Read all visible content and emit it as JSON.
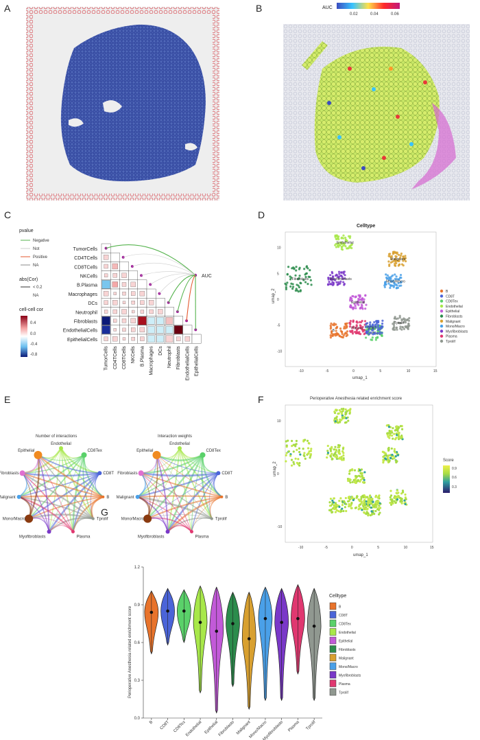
{
  "panels": {
    "A": "A",
    "B": "B",
    "C": "C",
    "D": "D",
    "E": "E",
    "F": "F",
    "G": "G"
  },
  "panelB": {
    "legend_title": "AUC",
    "ticks": [
      "0.02",
      "0.04",
      "0.06"
    ],
    "colors": [
      "#3b4cc0",
      "#38c3ff",
      "#ffe04a",
      "#ff2a2a",
      "#c2187a"
    ]
  },
  "panelC": {
    "pvalue_title": "pvalue",
    "pvalue_items": [
      {
        "label": "Negative",
        "color": "#55b34d"
      },
      {
        "label": "Not",
        "color": "#cccccc"
      },
      {
        "label": "Positive",
        "color": "#e4572e"
      },
      {
        "label": "NA",
        "color": "#888888"
      }
    ],
    "abs_title": "abs(Cor)",
    "abs_items": [
      "< 0.2",
      "NA"
    ],
    "cc_title": "cell-cell cor",
    "cc_ticks": [
      "0.4",
      "0.0",
      "-0.4",
      "-0.8"
    ],
    "auc_label": "AUC",
    "rows": [
      "TumorCells",
      "CD4TCells",
      "CD8TCells",
      "NKCells",
      "B.Plasma",
      "Macrophages",
      "DCs",
      "Neutrophil",
      "Fibroblasts",
      "EndothelialCells",
      "EpithelialCells"
    ]
  },
  "panelD": {
    "title": "Celltype",
    "xlabel": "umap_1",
    "ylabel": "umap_2",
    "xticks": [
      "-10",
      "-5",
      "0",
      "5",
      "10",
      "15"
    ],
    "yticks": [
      "10",
      "5",
      "0",
      "-5",
      "-10"
    ],
    "legend": [
      {
        "label": "B",
        "color": "#e8732b"
      },
      {
        "label": "CD8T",
        "color": "#4b64d8"
      },
      {
        "label": "CD8Tex",
        "color": "#5ad16a"
      },
      {
        "label": "Endothelial",
        "color": "#a8e84a"
      },
      {
        "label": "Epithelial",
        "color": "#c25ad8"
      },
      {
        "label": "Fibroblasts",
        "color": "#2c8c4c"
      },
      {
        "label": "Malignant",
        "color": "#d8a030"
      },
      {
        "label": "Mono/Macro",
        "color": "#4aa0e8"
      },
      {
        "label": "Myofibroblasts",
        "color": "#7a38c8"
      },
      {
        "label": "Plasma",
        "color": "#e03870"
      },
      {
        "label": "Tprolif",
        "color": "#909890"
      }
    ],
    "clusters": [
      {
        "label": "Endothelial",
        "x": -2.2,
        "y": 11.0,
        "color": "#a8e84a"
      },
      {
        "label": "Malignant",
        "x": 7.8,
        "y": 7.8,
        "color": "#d8a030"
      },
      {
        "label": "Fibroblasts",
        "x": -10.5,
        "y": 4.0,
        "color": "#2c8c4c"
      },
      {
        "label": "Mono/Macro",
        "x": 7.0,
        "y": 3.5,
        "color": "#4aa0e8"
      },
      {
        "label": "Myofibroblasts",
        "x": -3.5,
        "y": 4.0,
        "color": "#7a38c8"
      },
      {
        "label": "Epithelial",
        "x": 0.5,
        "y": -0.5,
        "color": "#c25ad8"
      },
      {
        "label": "Plasma",
        "x": 0.5,
        "y": -5.5,
        "color": "#e03870"
      },
      {
        "label": "CD8Tex",
        "x": 3.5,
        "y": -6.5,
        "color": "#5ad16a"
      },
      {
        "label": "Tprolif",
        "x": 8.5,
        "y": -4.5,
        "color": "#909890"
      },
      {
        "label": "CD8T",
        "x": 3.5,
        "y": -5.5,
        "color": "#4b64d8"
      },
      {
        "label": "B",
        "x": -3.0,
        "y": -6.0,
        "color": "#e8732b"
      }
    ]
  },
  "panelE": {
    "titles": [
      "Number of interactions",
      "Interaction weights"
    ],
    "nodes": [
      "Endothelial",
      "CD8Tex",
      "CD8T",
      "B",
      "Tprolif",
      "Plasma",
      "Myofibroblasts",
      "Mono/Macro",
      "Malignant",
      "Fibroblasts",
      "Epithelial"
    ]
  },
  "panelF": {
    "title": "Perioperative Anesthesia related enrichment score",
    "xlabel": "umap_1",
    "ylabel": "umap_2",
    "legend_title": "Score",
    "legend_ticks": [
      "0.9",
      "0.6",
      "0.3"
    ],
    "xticks": [
      "-10",
      "-5",
      "0",
      "5",
      "10",
      "15"
    ],
    "yticks": [
      "10",
      "0",
      "-10"
    ]
  },
  "chart_data": {
    "type": "violin",
    "ylabel": "Perioperative Anesthesia related enrichment score",
    "ylim": [
      0.0,
      1.2
    ],
    "yticks": [
      "1.2",
      "0.9",
      "0.6",
      "0.3",
      "0.0"
    ],
    "legend_title": "Celltype",
    "categories": [
      "B",
      "CD8T",
      "CD8Tex",
      "Endothelial",
      "Epithelial",
      "Fibroblasts",
      "Malignant",
      "Mono/Macro",
      "Myofibroblasts",
      "Plasma",
      "Tprolif"
    ],
    "colors": [
      "#e8732b",
      "#4b64d8",
      "#5ad16a",
      "#a8e84a",
      "#c25ad8",
      "#2c8c4c",
      "#d8a030",
      "#4aa0e8",
      "#7a38c8",
      "#e03870",
      "#909890"
    ],
    "series": [
      {
        "name": "B",
        "median": 0.84,
        "min": 0.51,
        "max": 1.01
      },
      {
        "name": "CD8T",
        "median": 0.85,
        "min": 0.58,
        "max": 1.03
      },
      {
        "name": "CD8Tex",
        "median": 0.85,
        "min": 0.6,
        "max": 1.02
      },
      {
        "name": "Endothelial",
        "median": 0.76,
        "min": 0.2,
        "max": 1.05
      },
      {
        "name": "Epithelial",
        "median": 0.69,
        "min": 0.04,
        "max": 1.04
      },
      {
        "name": "Fibroblasts",
        "median": 0.75,
        "min": 0.25,
        "max": 1.0
      },
      {
        "name": "Malignant",
        "median": 0.63,
        "min": 0.07,
        "max": 1.0
      },
      {
        "name": "Mono/Macro",
        "median": 0.79,
        "min": 0.14,
        "max": 1.04
      },
      {
        "name": "Myofibroblasts",
        "median": 0.76,
        "min": 0.14,
        "max": 1.03
      },
      {
        "name": "Plasma",
        "median": 0.79,
        "min": 0.35,
        "max": 1.06
      },
      {
        "name": "Tprolif",
        "median": 0.73,
        "min": 0.14,
        "max": 1.03
      }
    ]
  }
}
